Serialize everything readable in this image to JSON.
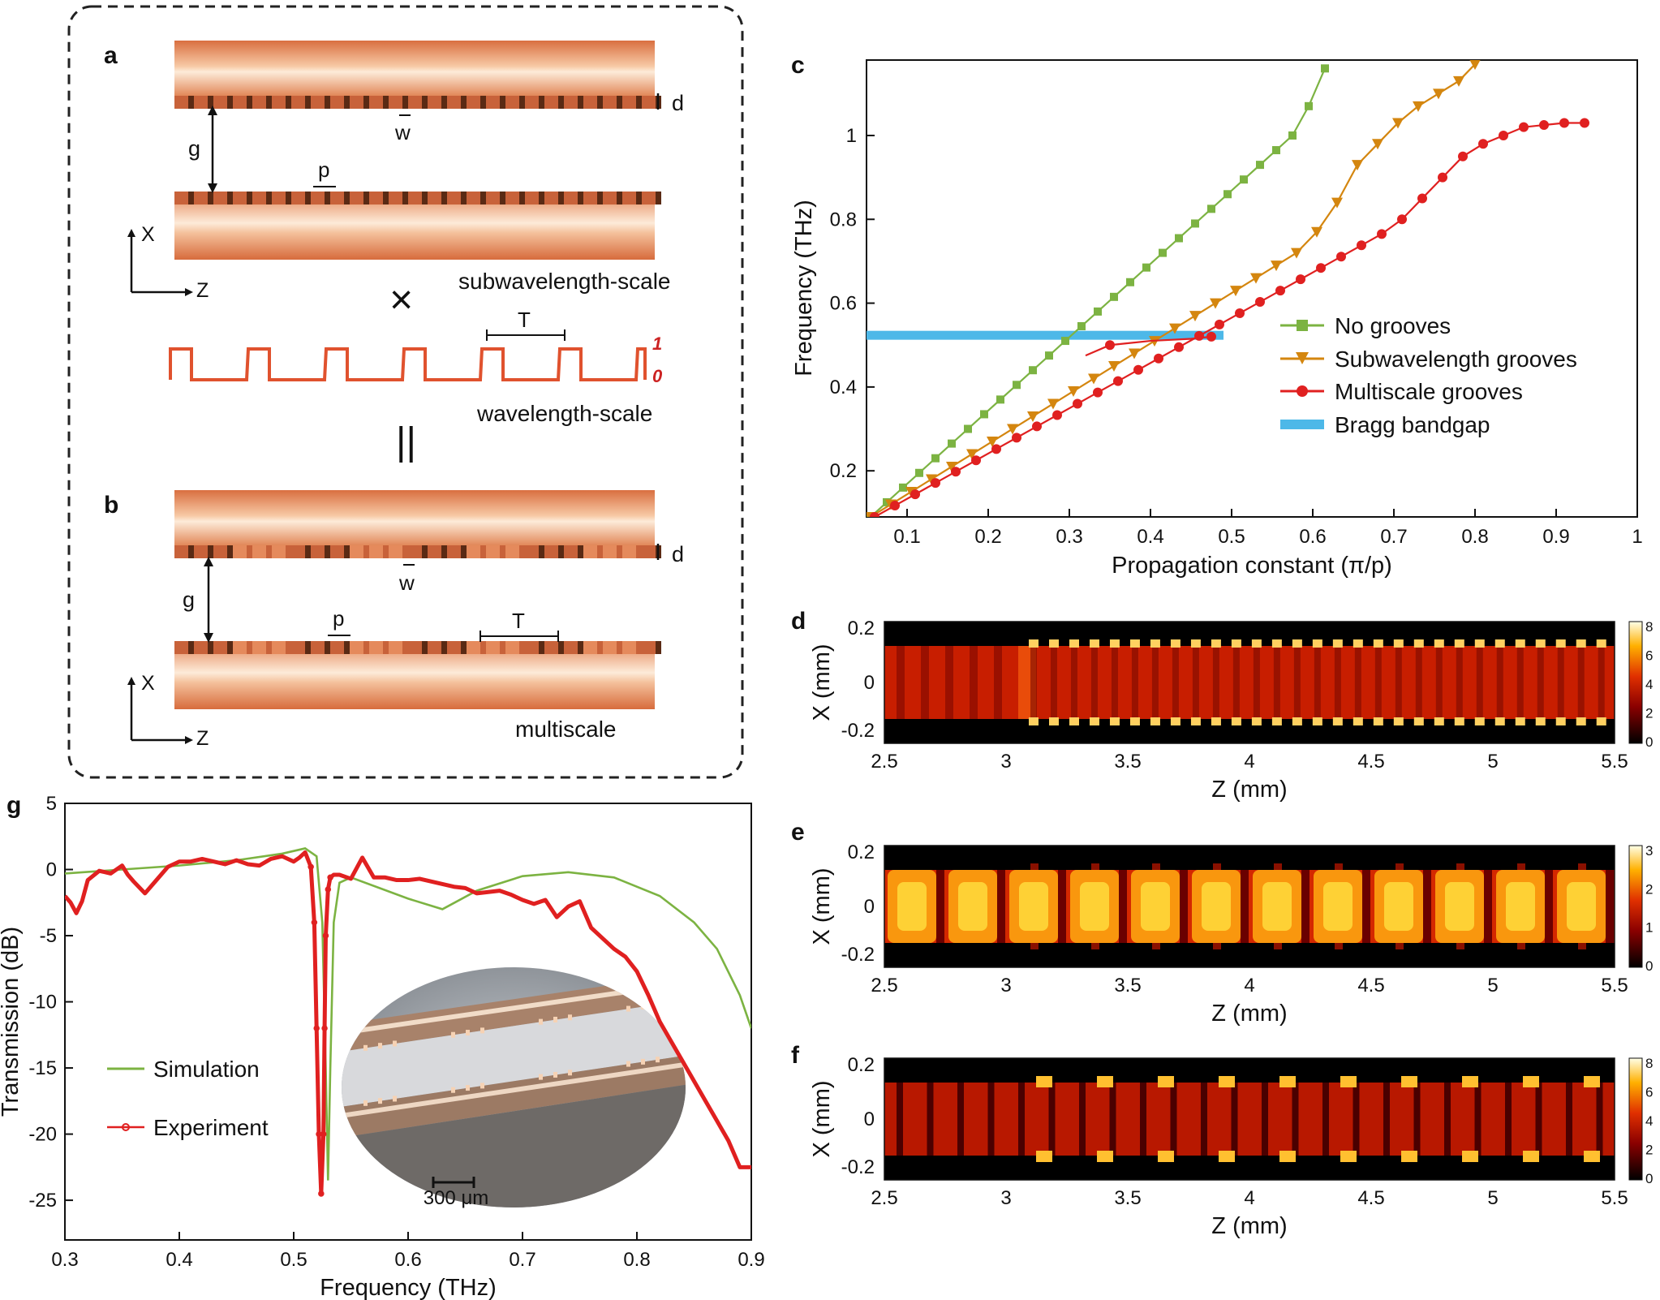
{
  "panel_letters": {
    "a": "a",
    "b": "b",
    "c": "c",
    "d": "d",
    "e": "e",
    "f": "f",
    "g": "g"
  },
  "schematic": {
    "label_d": "d",
    "label_w": "w",
    "label_g": "g",
    "label_p": "p",
    "label_T": "T",
    "axis_x": "X",
    "axis_z": "Z",
    "sub_caption": "subwavelength-scale",
    "times_symbol": "×",
    "wave_caption": "wavelength-scale",
    "wave_high": "1",
    "wave_low": "0",
    "equals_symbol": "||",
    "multi_caption": "multiscale",
    "colors": {
      "copper": "#e07a4c",
      "copper_light": "#fbe3cf",
      "wave": "#e0522e",
      "wave_label": "#cc2222"
    }
  },
  "chart_c": {
    "xlabel": "Propagation constant (π/p)",
    "ylabel": "Frequency (THz)",
    "xticks": [
      "0.1",
      "0.2",
      "0.3",
      "0.4",
      "0.5",
      "0.6",
      "0.7",
      "0.8",
      "0.9",
      "1"
    ],
    "yticks": [
      "0.2",
      "0.4",
      "0.6",
      "0.8",
      "1"
    ],
    "legend": [
      "No grooves",
      "Subwavelength grooves",
      "Multiscale grooves",
      "Bragg bandgap"
    ]
  },
  "chart_g": {
    "xlabel": "Frequency (THz)",
    "ylabel": "Transmission (dB)",
    "xticks": [
      "0.3",
      "0.4",
      "0.5",
      "0.6",
      "0.7",
      "0.8",
      "0.9"
    ],
    "yticks": [
      "5",
      "0",
      "-5",
      "-10",
      "-15",
      "-20",
      "-25"
    ],
    "legend": [
      "Simulation",
      "Experiment"
    ],
    "inset_scale": "300 μm"
  },
  "fields": {
    "xlabel": "Z (mm)",
    "ylabel": "X (mm)",
    "xticks": [
      "2.5",
      "3",
      "3.5",
      "4",
      "4.5",
      "5",
      "5.5"
    ],
    "yticks": [
      "0.2",
      "0",
      "-0.2"
    ],
    "d_colorbar": [
      "8",
      "6",
      "4",
      "2",
      "0"
    ],
    "e_colorbar": [
      "3",
      "2",
      "1",
      "0"
    ],
    "f_colorbar": [
      "8",
      "6",
      "4",
      "2",
      "0"
    ]
  },
  "chart_data": [
    {
      "type": "line",
      "panel": "c",
      "xlabel": "Propagation constant (π/p)",
      "ylabel": "Frequency (THz)",
      "xlim": [
        0.05,
        1.0
      ],
      "ylim": [
        0.09,
        1.18
      ],
      "series": [
        {
          "name": "No grooves",
          "color": "#7cb342",
          "marker": "square",
          "x": [
            0.055,
            0.075,
            0.095,
            0.115,
            0.135,
            0.155,
            0.175,
            0.195,
            0.215,
            0.235,
            0.255,
            0.275,
            0.295,
            0.315,
            0.335,
            0.355,
            0.375,
            0.395,
            0.415,
            0.435,
            0.455,
            0.475,
            0.495,
            0.515,
            0.535,
            0.555,
            0.575,
            0.595,
            0.615
          ],
          "y": [
            0.09,
            0.125,
            0.16,
            0.195,
            0.23,
            0.265,
            0.3,
            0.335,
            0.37,
            0.405,
            0.44,
            0.475,
            0.51,
            0.545,
            0.58,
            0.615,
            0.65,
            0.685,
            0.72,
            0.755,
            0.79,
            0.825,
            0.86,
            0.895,
            0.93,
            0.965,
            1.0,
            1.07,
            1.16
          ]
        },
        {
          "name": "Subwavelength grooves",
          "color": "#d4860f",
          "marker": "triangle-down",
          "x": [
            0.055,
            0.08,
            0.105,
            0.13,
            0.155,
            0.18,
            0.205,
            0.23,
            0.255,
            0.28,
            0.305,
            0.33,
            0.355,
            0.38,
            0.405,
            0.43,
            0.455,
            0.48,
            0.505,
            0.53,
            0.555,
            0.58,
            0.605,
            0.63,
            0.655,
            0.68,
            0.705,
            0.73,
            0.755,
            0.78,
            0.8
          ],
          "y": [
            0.09,
            0.12,
            0.15,
            0.18,
            0.21,
            0.24,
            0.27,
            0.3,
            0.33,
            0.36,
            0.39,
            0.42,
            0.45,
            0.48,
            0.51,
            0.54,
            0.57,
            0.6,
            0.63,
            0.66,
            0.69,
            0.72,
            0.77,
            0.84,
            0.93,
            0.98,
            1.03,
            1.07,
            1.1,
            1.13,
            1.17
          ]
        },
        {
          "name": "Multiscale grooves",
          "color": "#e02020",
          "marker": "circle",
          "x": [
            0.06,
            0.085,
            0.11,
            0.135,
            0.16,
            0.185,
            0.21,
            0.235,
            0.26,
            0.285,
            0.31,
            0.335,
            0.36,
            0.385,
            0.41,
            0.435,
            0.46,
            0.485,
            0.51,
            0.535,
            0.56,
            0.585,
            0.61,
            0.635,
            0.66,
            0.685,
            0.71,
            0.735,
            0.76,
            0.785,
            0.81,
            0.835,
            0.86,
            0.885,
            0.91,
            0.935
          ],
          "y": [
            0.09,
            0.117,
            0.144,
            0.171,
            0.198,
            0.225,
            0.252,
            0.279,
            0.306,
            0.333,
            0.36,
            0.387,
            0.414,
            0.441,
            0.468,
            0.495,
            0.522,
            0.549,
            0.576,
            0.603,
            0.63,
            0.657,
            0.684,
            0.711,
            0.738,
            0.765,
            0.8,
            0.85,
            0.9,
            0.95,
            0.98,
            1.0,
            1.02,
            1.025,
            1.03,
            1.03
          ]
        },
        {
          "name": "Bragg bandgap",
          "color": "#4db8e8",
          "type": "band",
          "x": [
            0.05,
            0.49
          ],
          "y": [
            0.526,
            0.534
          ]
        }
      ]
    },
    {
      "type": "line",
      "panel": "g",
      "xlabel": "Frequency (THz)",
      "ylabel": "Transmission (dB)",
      "xlim": [
        0.3,
        0.9
      ],
      "ylim": [
        -28,
        5
      ],
      "series": [
        {
          "name": "Simulation",
          "color": "#7cb342",
          "x": [
            0.3,
            0.35,
            0.4,
            0.45,
            0.49,
            0.51,
            0.52,
            0.525,
            0.528,
            0.53,
            0.532,
            0.535,
            0.54,
            0.55,
            0.6,
            0.63,
            0.66,
            0.7,
            0.74,
            0.78,
            0.82,
            0.85,
            0.87,
            0.89,
            0.9
          ],
          "y": [
            -0.3,
            0.0,
            0.3,
            0.7,
            1.2,
            1.6,
            1.0,
            -4,
            -15,
            -23.5,
            -15,
            -4,
            -1,
            -0.6,
            -2.2,
            -3.0,
            -1.6,
            -0.5,
            -0.2,
            -0.6,
            -2,
            -4,
            -6,
            -9.5,
            -12
          ]
        },
        {
          "name": "Experiment",
          "color": "#e02020",
          "x": [
            0.3,
            0.305,
            0.31,
            0.315,
            0.32,
            0.33,
            0.34,
            0.35,
            0.355,
            0.36,
            0.37,
            0.38,
            0.39,
            0.4,
            0.41,
            0.42,
            0.43,
            0.44,
            0.45,
            0.46,
            0.47,
            0.48,
            0.49,
            0.5,
            0.505,
            0.51,
            0.515,
            0.518,
            0.52,
            0.522,
            0.524,
            0.526,
            0.527,
            0.528,
            0.53,
            0.532,
            0.535,
            0.54,
            0.55,
            0.56,
            0.57,
            0.58,
            0.59,
            0.6,
            0.61,
            0.62,
            0.63,
            0.64,
            0.65,
            0.66,
            0.67,
            0.68,
            0.69,
            0.7,
            0.71,
            0.72,
            0.73,
            0.74,
            0.75,
            0.76,
            0.77,
            0.78,
            0.79,
            0.8,
            0.81,
            0.82,
            0.83,
            0.84,
            0.85,
            0.86,
            0.87,
            0.88,
            0.89,
            0.9
          ],
          "y": [
            -2,
            -2.5,
            -3.3,
            -2.4,
            -0.8,
            -0.1,
            -0.3,
            0.3,
            -0.4,
            -0.9,
            -1.8,
            -0.8,
            0.2,
            0.6,
            0.6,
            0.8,
            0.6,
            0.4,
            0.7,
            0.4,
            0.3,
            0.8,
            1.0,
            0.6,
            0.9,
            1.3,
            0.2,
            -4,
            -12,
            -20,
            -24.5,
            -20,
            -12,
            -5,
            -1.5,
            -0.6,
            -0.4,
            -0.4,
            -0.7,
            0.9,
            -0.6,
            -0.6,
            -0.8,
            -0.8,
            -0.7,
            -0.9,
            -1.1,
            -1.3,
            -1.4,
            -1.8,
            -1.7,
            -1.6,
            -1.9,
            -2.3,
            -2.6,
            -2.3,
            -3.6,
            -2.8,
            -2.4,
            -4.4,
            -5.2,
            -6.0,
            -6.6,
            -7.7,
            -9.5,
            -11.5,
            -13,
            -14.5,
            -16,
            -17.5,
            -19,
            -20.5,
            -22.5,
            -22.5
          ]
        }
      ]
    }
  ]
}
